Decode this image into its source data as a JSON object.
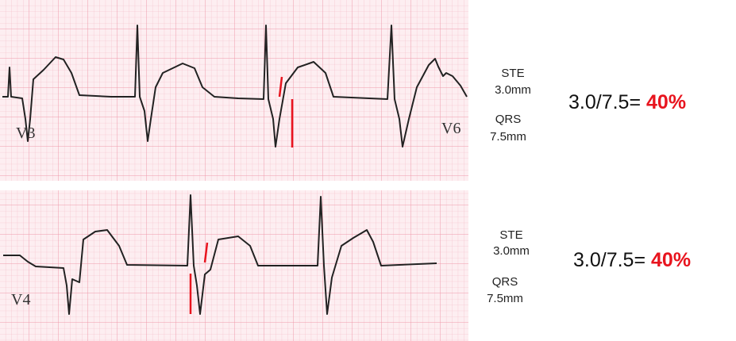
{
  "strips": [
    {
      "leads": [
        "V3",
        "V6"
      ],
      "ste": {
        "label": "STE",
        "value": "3.0mm"
      },
      "qrs": {
        "label": "QRS",
        "value": "7.5mm"
      },
      "ratio": {
        "formula": "3.0/7.5=",
        "result": "40%"
      }
    },
    {
      "leads": [
        "V4"
      ],
      "ste": {
        "label": "STE",
        "value": "3.0mm"
      },
      "qrs": {
        "label": "QRS",
        "value": "7.5mm"
      },
      "ratio": {
        "formula": "3.0/7.5=",
        "result": "40%"
      }
    }
  ]
}
